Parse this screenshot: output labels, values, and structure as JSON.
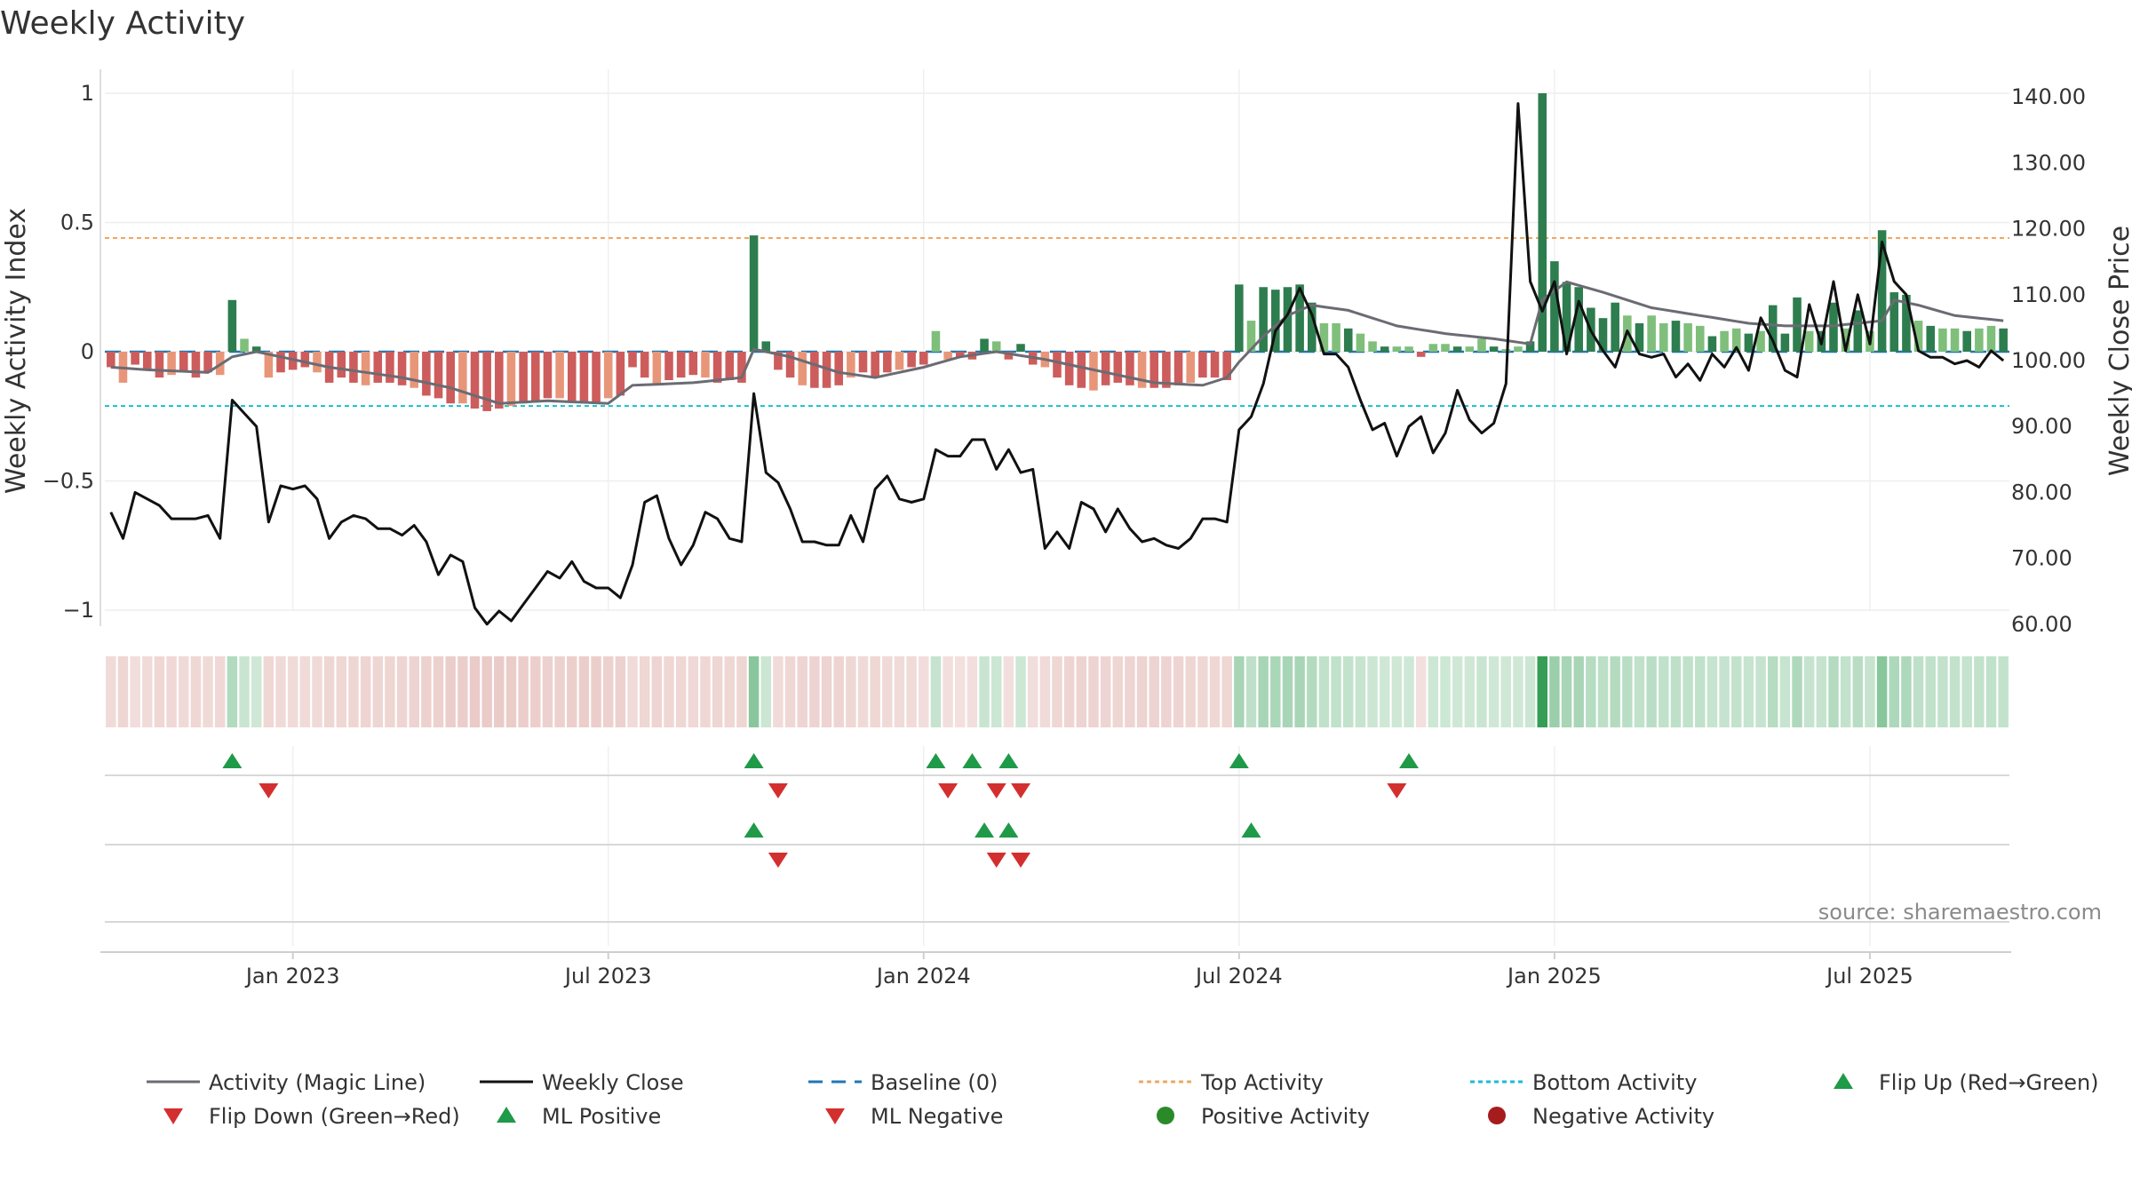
{
  "chart_data": {
    "type": "line",
    "title": "Weekly Activity",
    "ylabel_left": "Weekly Activity Index",
    "ylabel_right": "Weekly Close Price",
    "ylim_left": [
      -1.1,
      1.1
    ],
    "ylim_right": [
      58,
      142
    ],
    "left_ticks": [
      "1",
      "0.5",
      "0",
      "−0.5",
      "−1"
    ],
    "left_tick_values": [
      1,
      0.5,
      0,
      -0.5,
      -1
    ],
    "right_ticks": [
      "140.00",
      "130.00",
      "120.00",
      "110.00",
      "100.00",
      "90.00",
      "80.00",
      "70.00",
      "60.00"
    ],
    "right_tick_values": [
      140,
      130,
      120,
      110,
      100,
      90,
      80,
      70,
      60
    ],
    "x_ticks": [
      "Jan 2023",
      "Jul 2023",
      "Jan 2024",
      "Jul 2024",
      "Jan 2025",
      "Jul 2025"
    ],
    "x_tick_weeks": [
      15,
      41,
      67,
      93,
      119,
      145
    ],
    "week_count": 157,
    "top_activity": 0.44,
    "bottom_activity": -0.21,
    "source": "source: sharemaestro.com",
    "activity_keys": [
      [
        0,
        -0.06
      ],
      [
        1,
        -0.12
      ],
      [
        2,
        -0.05
      ],
      [
        3,
        -0.07
      ],
      [
        4,
        -0.1
      ],
      [
        5,
        -0.09
      ],
      [
        6,
        -0.08
      ],
      [
        7,
        -0.1
      ],
      [
        8,
        -0.08
      ],
      [
        9,
        -0.09
      ],
      [
        10,
        0.2
      ],
      [
        11,
        0.05
      ],
      [
        12,
        0.02
      ],
      [
        13,
        -0.1
      ],
      [
        14,
        -0.08
      ],
      [
        15,
        -0.07
      ],
      [
        16,
        -0.06
      ],
      [
        17,
        -0.08
      ],
      [
        18,
        -0.12
      ],
      [
        19,
        -0.1
      ],
      [
        20,
        -0.12
      ],
      [
        21,
        -0.13
      ],
      [
        22,
        -0.12
      ],
      [
        23,
        -0.12
      ],
      [
        24,
        -0.13
      ],
      [
        25,
        -0.14
      ],
      [
        26,
        -0.17
      ],
      [
        27,
        -0.18
      ],
      [
        28,
        -0.2
      ],
      [
        29,
        -0.2
      ],
      [
        30,
        -0.22
      ],
      [
        31,
        -0.23
      ],
      [
        32,
        -0.22
      ],
      [
        33,
        -0.21
      ],
      [
        34,
        -0.2
      ],
      [
        35,
        -0.19
      ],
      [
        36,
        -0.18
      ],
      [
        37,
        -0.18
      ],
      [
        38,
        -0.19
      ],
      [
        39,
        -0.2
      ],
      [
        40,
        -0.2
      ],
      [
        41,
        -0.18
      ],
      [
        42,
        -0.17
      ],
      [
        43,
        -0.06
      ],
      [
        44,
        -0.1
      ],
      [
        45,
        -0.13
      ],
      [
        46,
        -0.11
      ],
      [
        47,
        -0.1
      ],
      [
        48,
        -0.09
      ],
      [
        49,
        -0.1
      ],
      [
        50,
        -0.12
      ],
      [
        51,
        -0.11
      ],
      [
        52,
        -0.12
      ],
      [
        53,
        0.45
      ],
      [
        54,
        0.04
      ],
      [
        55,
        -0.07
      ],
      [
        56,
        -0.1
      ],
      [
        57,
        -0.13
      ],
      [
        58,
        -0.14
      ],
      [
        59,
        -0.14
      ],
      [
        60,
        -0.13
      ],
      [
        61,
        -0.1
      ],
      [
        62,
        -0.08
      ],
      [
        63,
        -0.1
      ],
      [
        64,
        -0.08
      ],
      [
        65,
        -0.07
      ],
      [
        66,
        -0.06
      ],
      [
        67,
        -0.05
      ],
      [
        68,
        0.08
      ],
      [
        69,
        -0.03
      ],
      [
        70,
        -0.02
      ],
      [
        71,
        -0.03
      ],
      [
        72,
        0.05
      ],
      [
        73,
        0.04
      ],
      [
        74,
        -0.03
      ],
      [
        75,
        0.03
      ],
      [
        76,
        -0.05
      ],
      [
        77,
        -0.06
      ],
      [
        78,
        -0.1
      ],
      [
        79,
        -0.13
      ],
      [
        80,
        -0.14
      ],
      [
        81,
        -0.15
      ],
      [
        82,
        -0.13
      ],
      [
        83,
        -0.12
      ],
      [
        84,
        -0.13
      ],
      [
        85,
        -0.14
      ],
      [
        86,
        -0.14
      ],
      [
        87,
        -0.14
      ],
      [
        88,
        -0.13
      ],
      [
        89,
        -0.12
      ],
      [
        90,
        -0.1
      ],
      [
        91,
        -0.1
      ],
      [
        92,
        -0.11
      ],
      [
        93,
        0.26
      ],
      [
        94,
        0.12
      ],
      [
        95,
        0.25
      ],
      [
        96,
        0.24
      ],
      [
        97,
        0.25
      ],
      [
        98,
        0.26
      ],
      [
        99,
        0.19
      ],
      [
        100,
        0.11
      ],
      [
        101,
        0.11
      ],
      [
        102,
        0.09
      ],
      [
        103,
        0.07
      ],
      [
        104,
        0.04
      ],
      [
        105,
        0.02
      ],
      [
        106,
        0.02
      ],
      [
        107,
        0.02
      ],
      [
        108,
        -0.02
      ],
      [
        109,
        0.03
      ],
      [
        110,
        0.03
      ],
      [
        111,
        0.02
      ],
      [
        112,
        0.02
      ],
      [
        113,
        0.05
      ],
      [
        114,
        0.02
      ],
      [
        115,
        0.01
      ],
      [
        116,
        0.02
      ],
      [
        117,
        0.04
      ],
      [
        118,
        1.0
      ],
      [
        119,
        0.35
      ],
      [
        120,
        0.27
      ],
      [
        121,
        0.25
      ],
      [
        122,
        0.17
      ],
      [
        123,
        0.13
      ],
      [
        124,
        0.19
      ],
      [
        125,
        0.14
      ],
      [
        126,
        0.11
      ],
      [
        127,
        0.14
      ],
      [
        128,
        0.11
      ],
      [
        129,
        0.12
      ],
      [
        130,
        0.11
      ],
      [
        131,
        0.1
      ],
      [
        132,
        0.06
      ],
      [
        133,
        0.08
      ],
      [
        134,
        0.09
      ],
      [
        135,
        0.07
      ],
      [
        136,
        0.08
      ],
      [
        137,
        0.18
      ],
      [
        138,
        0.07
      ],
      [
        139,
        0.21
      ],
      [
        140,
        0.08
      ],
      [
        141,
        0.08
      ],
      [
        142,
        0.19
      ],
      [
        143,
        0.09
      ],
      [
        144,
        0.16
      ],
      [
        145,
        0.08
      ],
      [
        146,
        0.47
      ],
      [
        147,
        0.23
      ],
      [
        148,
        0.22
      ],
      [
        149,
        0.12
      ],
      [
        150,
        0.1
      ],
      [
        151,
        0.09
      ],
      [
        152,
        0.09
      ],
      [
        153,
        0.08
      ],
      [
        154,
        0.09
      ],
      [
        155,
        0.1
      ],
      [
        156,
        0.09
      ]
    ],
    "magic_line_keys": [
      [
        0,
        -0.06
      ],
      [
        3,
        -0.07
      ],
      [
        8,
        -0.08
      ],
      [
        10,
        -0.02
      ],
      [
        12,
        0.0
      ],
      [
        18,
        -0.06
      ],
      [
        24,
        -0.1
      ],
      [
        28,
        -0.14
      ],
      [
        32,
        -0.2
      ],
      [
        36,
        -0.19
      ],
      [
        41,
        -0.2
      ],
      [
        43,
        -0.13
      ],
      [
        48,
        -0.12
      ],
      [
        52,
        -0.1
      ],
      [
        53,
        0.01
      ],
      [
        56,
        -0.02
      ],
      [
        60,
        -0.08
      ],
      [
        63,
        -0.1
      ],
      [
        67,
        -0.06
      ],
      [
        70,
        -0.02
      ],
      [
        73,
        0.0
      ],
      [
        77,
        -0.03
      ],
      [
        81,
        -0.07
      ],
      [
        86,
        -0.12
      ],
      [
        90,
        -0.13
      ],
      [
        92,
        -0.1
      ],
      [
        93,
        -0.04
      ],
      [
        95,
        0.06
      ],
      [
        97,
        0.14
      ],
      [
        99,
        0.18
      ],
      [
        102,
        0.16
      ],
      [
        106,
        0.1
      ],
      [
        110,
        0.07
      ],
      [
        114,
        0.05
      ],
      [
        117,
        0.03
      ],
      [
        118,
        0.2
      ],
      [
        120,
        0.27
      ],
      [
        123,
        0.23
      ],
      [
        127,
        0.17
      ],
      [
        131,
        0.14
      ],
      [
        135,
        0.11
      ],
      [
        138,
        0.1
      ],
      [
        142,
        0.1
      ],
      [
        146,
        0.12
      ],
      [
        147,
        0.2
      ],
      [
        149,
        0.18
      ],
      [
        152,
        0.14
      ],
      [
        156,
        0.12
      ]
    ],
    "weekly_close_keys": [
      [
        0,
        77
      ],
      [
        1,
        73
      ],
      [
        2,
        80
      ],
      [
        3,
        79
      ],
      [
        4,
        78
      ],
      [
        5,
        76
      ],
      [
        6,
        76
      ],
      [
        7,
        76
      ],
      [
        8,
        76.5
      ],
      [
        9,
        73
      ],
      [
        10,
        94
      ],
      [
        11,
        92
      ],
      [
        12,
        90
      ],
      [
        13,
        75.5
      ],
      [
        14,
        81
      ],
      [
        15,
        80.5
      ],
      [
        16,
        81
      ],
      [
        17,
        79
      ],
      [
        18,
        73
      ],
      [
        19,
        75.5
      ],
      [
        20,
        76.5
      ],
      [
        21,
        76
      ],
      [
        22,
        74.5
      ],
      [
        23,
        74.5
      ],
      [
        24,
        73.5
      ],
      [
        25,
        75
      ],
      [
        26,
        72.5
      ],
      [
        27,
        67.5
      ],
      [
        28,
        70.5
      ],
      [
        29,
        69.5
      ],
      [
        30,
        62.5
      ],
      [
        31,
        60
      ],
      [
        32,
        62
      ],
      [
        33,
        60.5
      ],
      [
        34,
        63
      ],
      [
        35,
        65.5
      ],
      [
        36,
        68
      ],
      [
        37,
        67
      ],
      [
        38,
        69.5
      ],
      [
        39,
        66.5
      ],
      [
        40,
        65.5
      ],
      [
        41,
        65.5
      ],
      [
        42,
        64
      ],
      [
        43,
        69
      ],
      [
        44,
        78.5
      ],
      [
        45,
        79.5
      ],
      [
        46,
        73
      ],
      [
        47,
        69
      ],
      [
        48,
        72
      ],
      [
        49,
        77
      ],
      [
        50,
        76
      ],
      [
        51,
        73
      ],
      [
        52,
        72.5
      ],
      [
        53,
        95
      ],
      [
        54,
        83
      ],
      [
        55,
        81.5
      ],
      [
        56,
        77.5
      ],
      [
        57,
        72.5
      ],
      [
        58,
        72.5
      ],
      [
        59,
        72
      ],
      [
        60,
        72
      ],
      [
        61,
        76.5
      ],
      [
        62,
        72.5
      ],
      [
        63,
        80.5
      ],
      [
        64,
        82.5
      ],
      [
        65,
        79
      ],
      [
        66,
        78.5
      ],
      [
        67,
        79
      ],
      [
        68,
        86.5
      ],
      [
        69,
        85.5
      ],
      [
        70,
        85.5
      ],
      [
        71,
        88
      ],
      [
        72,
        88
      ],
      [
        73,
        83.5
      ],
      [
        74,
        86.5
      ],
      [
        75,
        83
      ],
      [
        76,
        83.5
      ],
      [
        77,
        71.5
      ],
      [
        78,
        74
      ],
      [
        79,
        71.5
      ],
      [
        80,
        78.5
      ],
      [
        81,
        77.5
      ],
      [
        82,
        74
      ],
      [
        83,
        77.5
      ],
      [
        84,
        74.5
      ],
      [
        85,
        72.5
      ],
      [
        86,
        73
      ],
      [
        87,
        72
      ],
      [
        88,
        71.5
      ],
      [
        89,
        73
      ],
      [
        90,
        76
      ],
      [
        91,
        76
      ],
      [
        92,
        75.5
      ],
      [
        93,
        89.5
      ],
      [
        94,
        91.5
      ],
      [
        95,
        96.5
      ],
      [
        96,
        104.5
      ],
      [
        97,
        107
      ],
      [
        98,
        111
      ],
      [
        99,
        107
      ],
      [
        100,
        101
      ],
      [
        101,
        101
      ],
      [
        102,
        99
      ],
      [
        103,
        94
      ],
      [
        104,
        89.5
      ],
      [
        105,
        90.5
      ],
      [
        106,
        85.5
      ],
      [
        107,
        90
      ],
      [
        108,
        91.5
      ],
      [
        109,
        86
      ],
      [
        110,
        89
      ],
      [
        111,
        95.5
      ],
      [
        112,
        91
      ],
      [
        113,
        89
      ],
      [
        114,
        90.5
      ],
      [
        115,
        96.5
      ],
      [
        116,
        139
      ],
      [
        117,
        112
      ],
      [
        118,
        107.5
      ],
      [
        119,
        112
      ],
      [
        120,
        101
      ],
      [
        121,
        109
      ],
      [
        122,
        104.5
      ],
      [
        123,
        101.5
      ],
      [
        124,
        99
      ],
      [
        125,
        104.5
      ],
      [
        126,
        101
      ],
      [
        127,
        100.5
      ],
      [
        128,
        101
      ],
      [
        129,
        97.5
      ],
      [
        130,
        99.5
      ],
      [
        131,
        97
      ],
      [
        132,
        101
      ],
      [
        133,
        99
      ],
      [
        134,
        102
      ],
      [
        135,
        98.5
      ],
      [
        136,
        106.5
      ],
      [
        137,
        103
      ],
      [
        138,
        98.5
      ],
      [
        139,
        97.5
      ],
      [
        140,
        108.5
      ],
      [
        141,
        102.5
      ],
      [
        142,
        112
      ],
      [
        143,
        101.5
      ],
      [
        144,
        110
      ],
      [
        145,
        102.5
      ],
      [
        146,
        118
      ],
      [
        147,
        112
      ],
      [
        148,
        110
      ],
      [
        149,
        101.5
      ],
      [
        150,
        100.5
      ],
      [
        151,
        100.5
      ],
      [
        152,
        99.5
      ],
      [
        153,
        100
      ],
      [
        154,
        99
      ],
      [
        155,
        101.5
      ],
      [
        156,
        100
      ]
    ],
    "flip_up_weeks": [
      10,
      53,
      68,
      71,
      74,
      93,
      107
    ],
    "flip_down_weeks": [
      13,
      55,
      69,
      73,
      75,
      106
    ],
    "ml_positive_weeks": [
      53,
      72,
      74,
      94
    ],
    "ml_negative_weeks": [
      55,
      73,
      75
    ],
    "legend": [
      "Activity (Magic Line)",
      "Weekly Close",
      "Baseline (0)",
      "Top Activity",
      "Bottom Activity",
      "Flip Up (Red→Green)",
      "Flip Down (Green→Red)",
      "ML Positive",
      "ML Negative",
      "Positive Activity",
      "Negative Activity"
    ],
    "colors": {
      "pos_strong": "#2e7d4f",
      "pos_light": "#7fbf7b",
      "neg_strong": "#cd5c5c",
      "neg_light": "#e8967a",
      "magic_line": "#6b6b73",
      "close": "#111111",
      "baseline": "#1f77b4",
      "top_line": "#f0a860",
      "bottom_line": "#17becf",
      "flip_up": "#1f9a48",
      "flip_down": "#d32f2f",
      "positive_dot": "#2a8a2a",
      "negative_dot": "#a61c1c"
    }
  }
}
